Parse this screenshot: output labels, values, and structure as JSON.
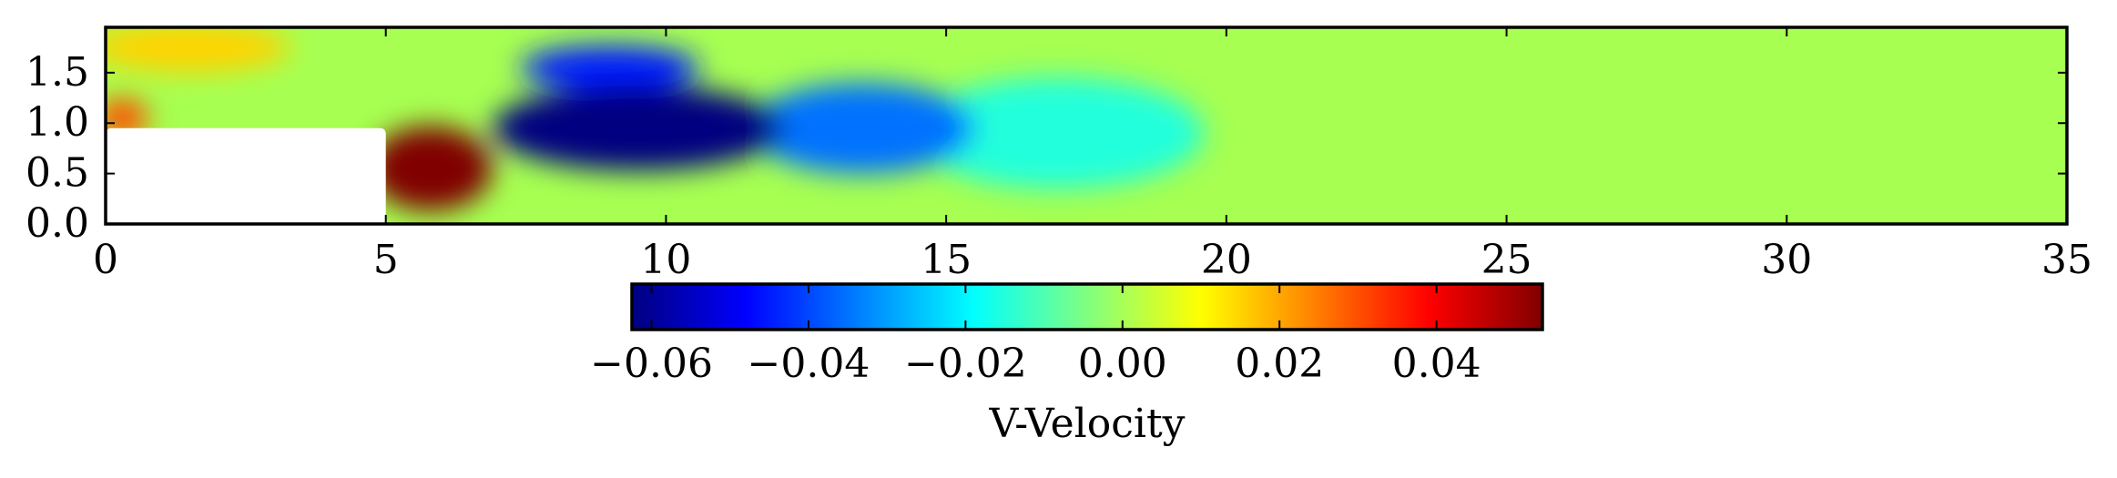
{
  "chart_data": {
    "type": "heatmap",
    "title": "",
    "xlabel": "",
    "ylabel": "",
    "xlim": [
      0,
      35
    ],
    "ylim": [
      0,
      1.95
    ],
    "x_ticks": [
      0,
      5,
      10,
      15,
      20,
      25,
      30,
      35
    ],
    "x_tick_labels": [
      "0",
      "5",
      "10",
      "15",
      "20",
      "25",
      "30",
      "35"
    ],
    "y_ticks": [
      0.0,
      0.5,
      1.0,
      1.5
    ],
    "y_tick_labels": [
      "0.0",
      "0.5",
      "1.0",
      "1.5"
    ],
    "grid": false,
    "colormap": "jet",
    "obstacle": {
      "x": [
        0,
        5
      ],
      "y": [
        0,
        0.95
      ],
      "color": "#ffffff"
    },
    "field_features": [
      {
        "label": "positive lobe",
        "x": 5.8,
        "y": 0.55,
        "value": 0.055
      },
      {
        "label": "negative core",
        "x": 9.5,
        "y": 0.95,
        "value": -0.065
      },
      {
        "label": "negative arm",
        "x": 9.0,
        "y": 1.55,
        "value": -0.045
      },
      {
        "label": "negative trail",
        "x": 13.5,
        "y": 0.95,
        "value": -0.035
      },
      {
        "label": "weak negative tail",
        "x": 17.0,
        "y": 0.9,
        "value": -0.015
      },
      {
        "label": "leading edge positive",
        "x": 0.3,
        "y": 1.05,
        "value": 0.03
      },
      {
        "label": "upper-left positive",
        "x": 1.5,
        "y": 1.75,
        "value": 0.015
      }
    ],
    "colorbar": {
      "label": "V-Velocity",
      "min": -0.0625,
      "max": 0.0535,
      "ticks": [
        -0.06,
        -0.04,
        -0.02,
        0.0,
        0.02,
        0.04
      ],
      "tick_labels": [
        "−0.06",
        "−0.04",
        "−0.02",
        "0.00",
        "0.02",
        "0.04"
      ],
      "orientation": "horizontal",
      "placement": "bottom-center"
    }
  }
}
